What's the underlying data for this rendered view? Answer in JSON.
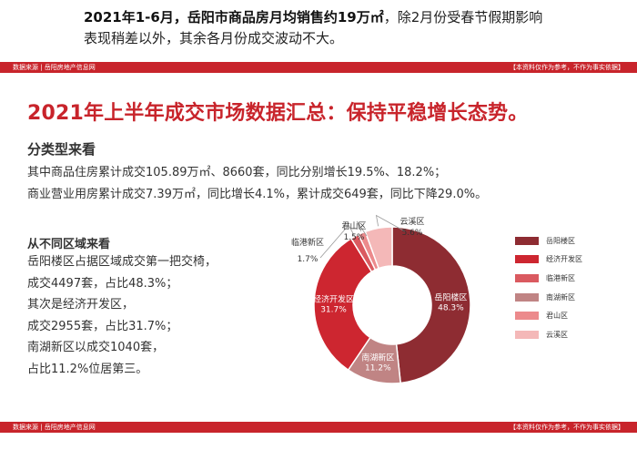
{
  "intro": {
    "bold": "2021年1-6月，岳阳市商品房月均销售约19万㎡",
    "rest1": "，除2月份受春节假期影响",
    "line2": "表现稍差以外，其余各月份成交波动不大。"
  },
  "footer": {
    "source": "数据来源 | 岳阳房地产信息网",
    "disclaimer": "【本资料仅作为参考，不作为事实依据】"
  },
  "headline": "2021年上半年成交市场数据汇总：保持平稳增长态势。",
  "by_type": {
    "title": "分类型来看",
    "line1": "其中商品住房累计成交105.89万㎡、8660套，同比分别增长19.5%、18.2%；",
    "line2": "商业营业用房累计成交7.39万㎡，同比增长4.1%，累计成交649套，同比下降29.0%。"
  },
  "by_district": {
    "title": "从不同区域来看",
    "lines": [
      "岳阳楼区占据区域成交第一把交椅，",
      "成交4497套，占比48.3%；",
      "其次是经济开发区，",
      "成交2955套，占比31.7%；",
      "南湖新区以成交1040套，",
      "占比11.2%位居第三。"
    ]
  },
  "chart_data": {
    "type": "pie",
    "variant": "donut",
    "legend_position": "right",
    "title": "",
    "slices": [
      {
        "name": "岳阳楼区",
        "value": 48.3,
        "label": "48.3%",
        "color": "#8e2c32"
      },
      {
        "name": "南湖新区",
        "value": 11.2,
        "label": "11.2%",
        "color": "#c08484"
      },
      {
        "name": "经济开发区",
        "value": 31.7,
        "label": "31.7%",
        "color": "#cd2630"
      },
      {
        "name": "临港新区",
        "value": 1.7,
        "label": "1.7%",
        "color": "#da5a60"
      },
      {
        "name": "君山区",
        "value": 1.5,
        "label": "1.5%",
        "color": "#ec8a8c"
      },
      {
        "name": "云溪区",
        "value": 5.6,
        "label": "5.6%",
        "color": "#f4b8b8"
      }
    ],
    "legend_order": [
      "岳阳楼区",
      "经济开发区",
      "临港新区",
      "南湖新区",
      "君山区",
      "云溪区"
    ]
  }
}
